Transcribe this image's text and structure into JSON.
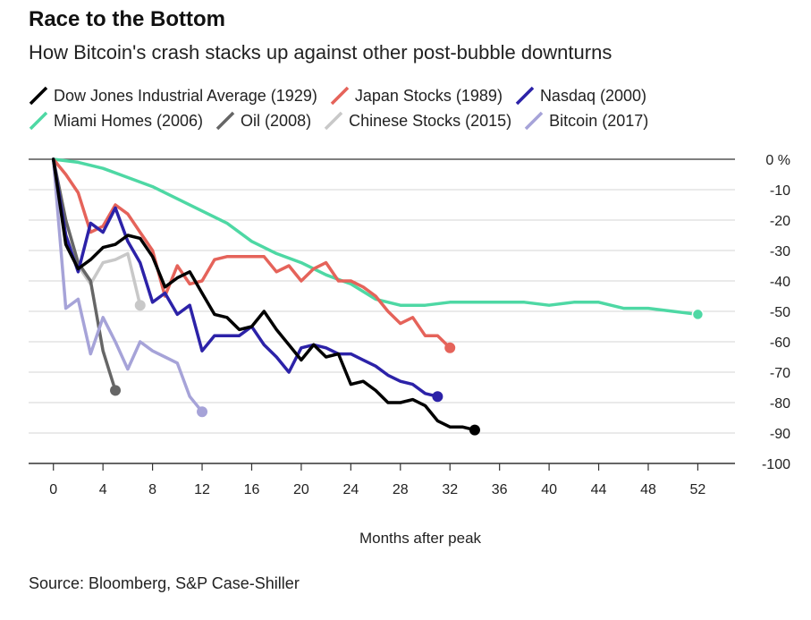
{
  "title": "Race to the Bottom",
  "subtitle": "How Bitcoin's crash stacks up against other post-bubble downturns",
  "source": "Source: Bloomberg, S&P Case-Shiller",
  "chart_data": {
    "type": "line",
    "title": "Race to the Bottom",
    "subtitle": "How Bitcoin's crash stacks up against other post-bubble downturns",
    "xlabel": "Months after peak",
    "ylabel": "",
    "xlim": [
      -2,
      55
    ],
    "ylim": [
      -100,
      0
    ],
    "x_ticks": [
      0,
      4,
      8,
      12,
      16,
      20,
      24,
      28,
      32,
      36,
      40,
      44,
      48,
      52
    ],
    "y_ticks": [
      0,
      -10,
      -20,
      -30,
      -40,
      -50,
      -60,
      -70,
      -80,
      -90,
      -100
    ],
    "y_tick_labels": [
      "0 %",
      "-10",
      "-20",
      "-30",
      "-40",
      "-50",
      "-60",
      "-70",
      "-80",
      "-90",
      "-100"
    ],
    "grid": "horizontal",
    "legend_position": "top",
    "series": [
      {
        "name": "Dow Jones Industrial Average (1929)",
        "color": "#000000",
        "x": [
          0,
          1,
          2,
          3,
          4,
          5,
          6,
          7,
          8,
          9,
          10,
          11,
          12,
          13,
          14,
          15,
          16,
          17,
          18,
          19,
          20,
          21,
          22,
          23,
          24,
          25,
          26,
          27,
          28,
          29,
          30,
          31,
          32,
          33,
          34
        ],
        "y": [
          0,
          -28,
          -36,
          -33,
          -29,
          -28,
          -25,
          -26,
          -32,
          -42,
          -39,
          -37,
          -44,
          -51,
          -52,
          -56,
          -55,
          -50,
          -56,
          -61,
          -66,
          -61,
          -65,
          -64,
          -74,
          -73,
          -76,
          -80,
          -80,
          -79,
          -81,
          -86,
          -88,
          -88,
          -89
        ]
      },
      {
        "name": "Japan Stocks (1989)",
        "color": "#e5635a",
        "x": [
          0,
          1,
          2,
          3,
          4,
          5,
          6,
          7,
          8,
          9,
          10,
          11,
          12,
          13,
          14,
          15,
          16,
          17,
          18,
          19,
          20,
          21,
          22,
          23,
          24,
          25,
          26,
          27,
          28,
          29,
          30,
          31,
          32
        ],
        "y": [
          0,
          -5,
          -11,
          -24,
          -22,
          -15,
          -18,
          -24,
          -30,
          -45,
          -35,
          -41,
          -40,
          -33,
          -32,
          -32,
          -32,
          -32,
          -37,
          -35,
          -40,
          -36,
          -34,
          -40,
          -40,
          -42,
          -45,
          -50,
          -54,
          -52,
          -58,
          -58,
          -62
        ]
      },
      {
        "name": "Nasdaq (2000)",
        "color": "#2c22a8",
        "x": [
          0,
          1,
          2,
          3,
          4,
          5,
          6,
          7,
          8,
          9,
          10,
          11,
          12,
          13,
          14,
          15,
          16,
          17,
          18,
          19,
          20,
          21,
          22,
          23,
          24,
          25,
          26,
          27,
          28,
          29,
          30,
          31
        ],
        "y": [
          0,
          -25,
          -37,
          -21,
          -24,
          -16,
          -27,
          -34,
          -47,
          -44,
          -51,
          -48,
          -63,
          -58,
          -58,
          -58,
          -55,
          -61,
          -65,
          -70,
          -62,
          -61,
          -62,
          -64,
          -64,
          -66,
          -68,
          -71,
          -73,
          -74,
          -77,
          -78
        ]
      },
      {
        "name": "Miami Homes (2006)",
        "color": "#4ed8a4",
        "x": [
          0,
          2,
          4,
          6,
          8,
          10,
          12,
          14,
          16,
          18,
          20,
          22,
          24,
          26,
          28,
          30,
          32,
          34,
          36,
          38,
          40,
          42,
          44,
          46,
          48,
          50,
          52
        ],
        "y": [
          0,
          -1,
          -3,
          -6,
          -9,
          -13,
          -17,
          -21,
          -27,
          -31,
          -34,
          -38,
          -41,
          -46,
          -48,
          -48,
          -47,
          -47,
          -47,
          -47,
          -48,
          -47,
          -47,
          -49,
          -49,
          -50,
          -51
        ]
      },
      {
        "name": "Oil (2008)",
        "color": "#666666",
        "x": [
          0,
          1,
          2,
          3,
          4,
          5
        ],
        "y": [
          0,
          -20,
          -34,
          -40,
          -63,
          -76
        ]
      },
      {
        "name": "Chinese Stocks (2015)",
        "color": "#c8c8c8",
        "x": [
          0,
          1,
          2,
          3,
          4,
          5,
          6,
          7
        ],
        "y": [
          0,
          -25,
          -35,
          -41,
          -34,
          -33,
          -31,
          -48
        ]
      },
      {
        "name": "Bitcoin (2017)",
        "color": "#a6a3d8",
        "x": [
          0,
          1,
          2,
          3,
          4,
          5,
          6,
          7,
          8,
          9,
          10,
          11,
          12
        ],
        "y": [
          0,
          -49,
          -46,
          -64,
          -52,
          -60,
          -69,
          -60,
          -63,
          -65,
          -67,
          -78,
          -83
        ]
      }
    ]
  }
}
